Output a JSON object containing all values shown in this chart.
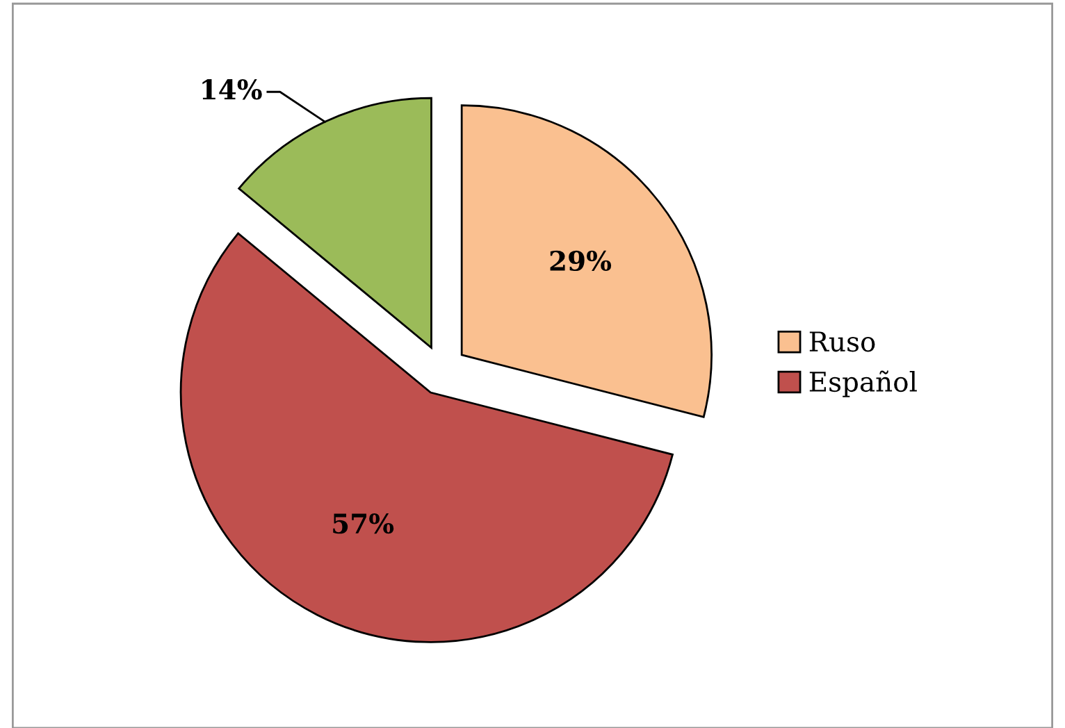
{
  "chart_data": {
    "type": "pie",
    "categories": [
      "Ruso",
      "Español",
      null
    ],
    "values": [
      29,
      57,
      14
    ],
    "colors": [
      "#fac090",
      "#c0504d",
      "#9bbb59"
    ],
    "value_labels": [
      "29%",
      "57%",
      "14%"
    ],
    "legend": "right"
  }
}
